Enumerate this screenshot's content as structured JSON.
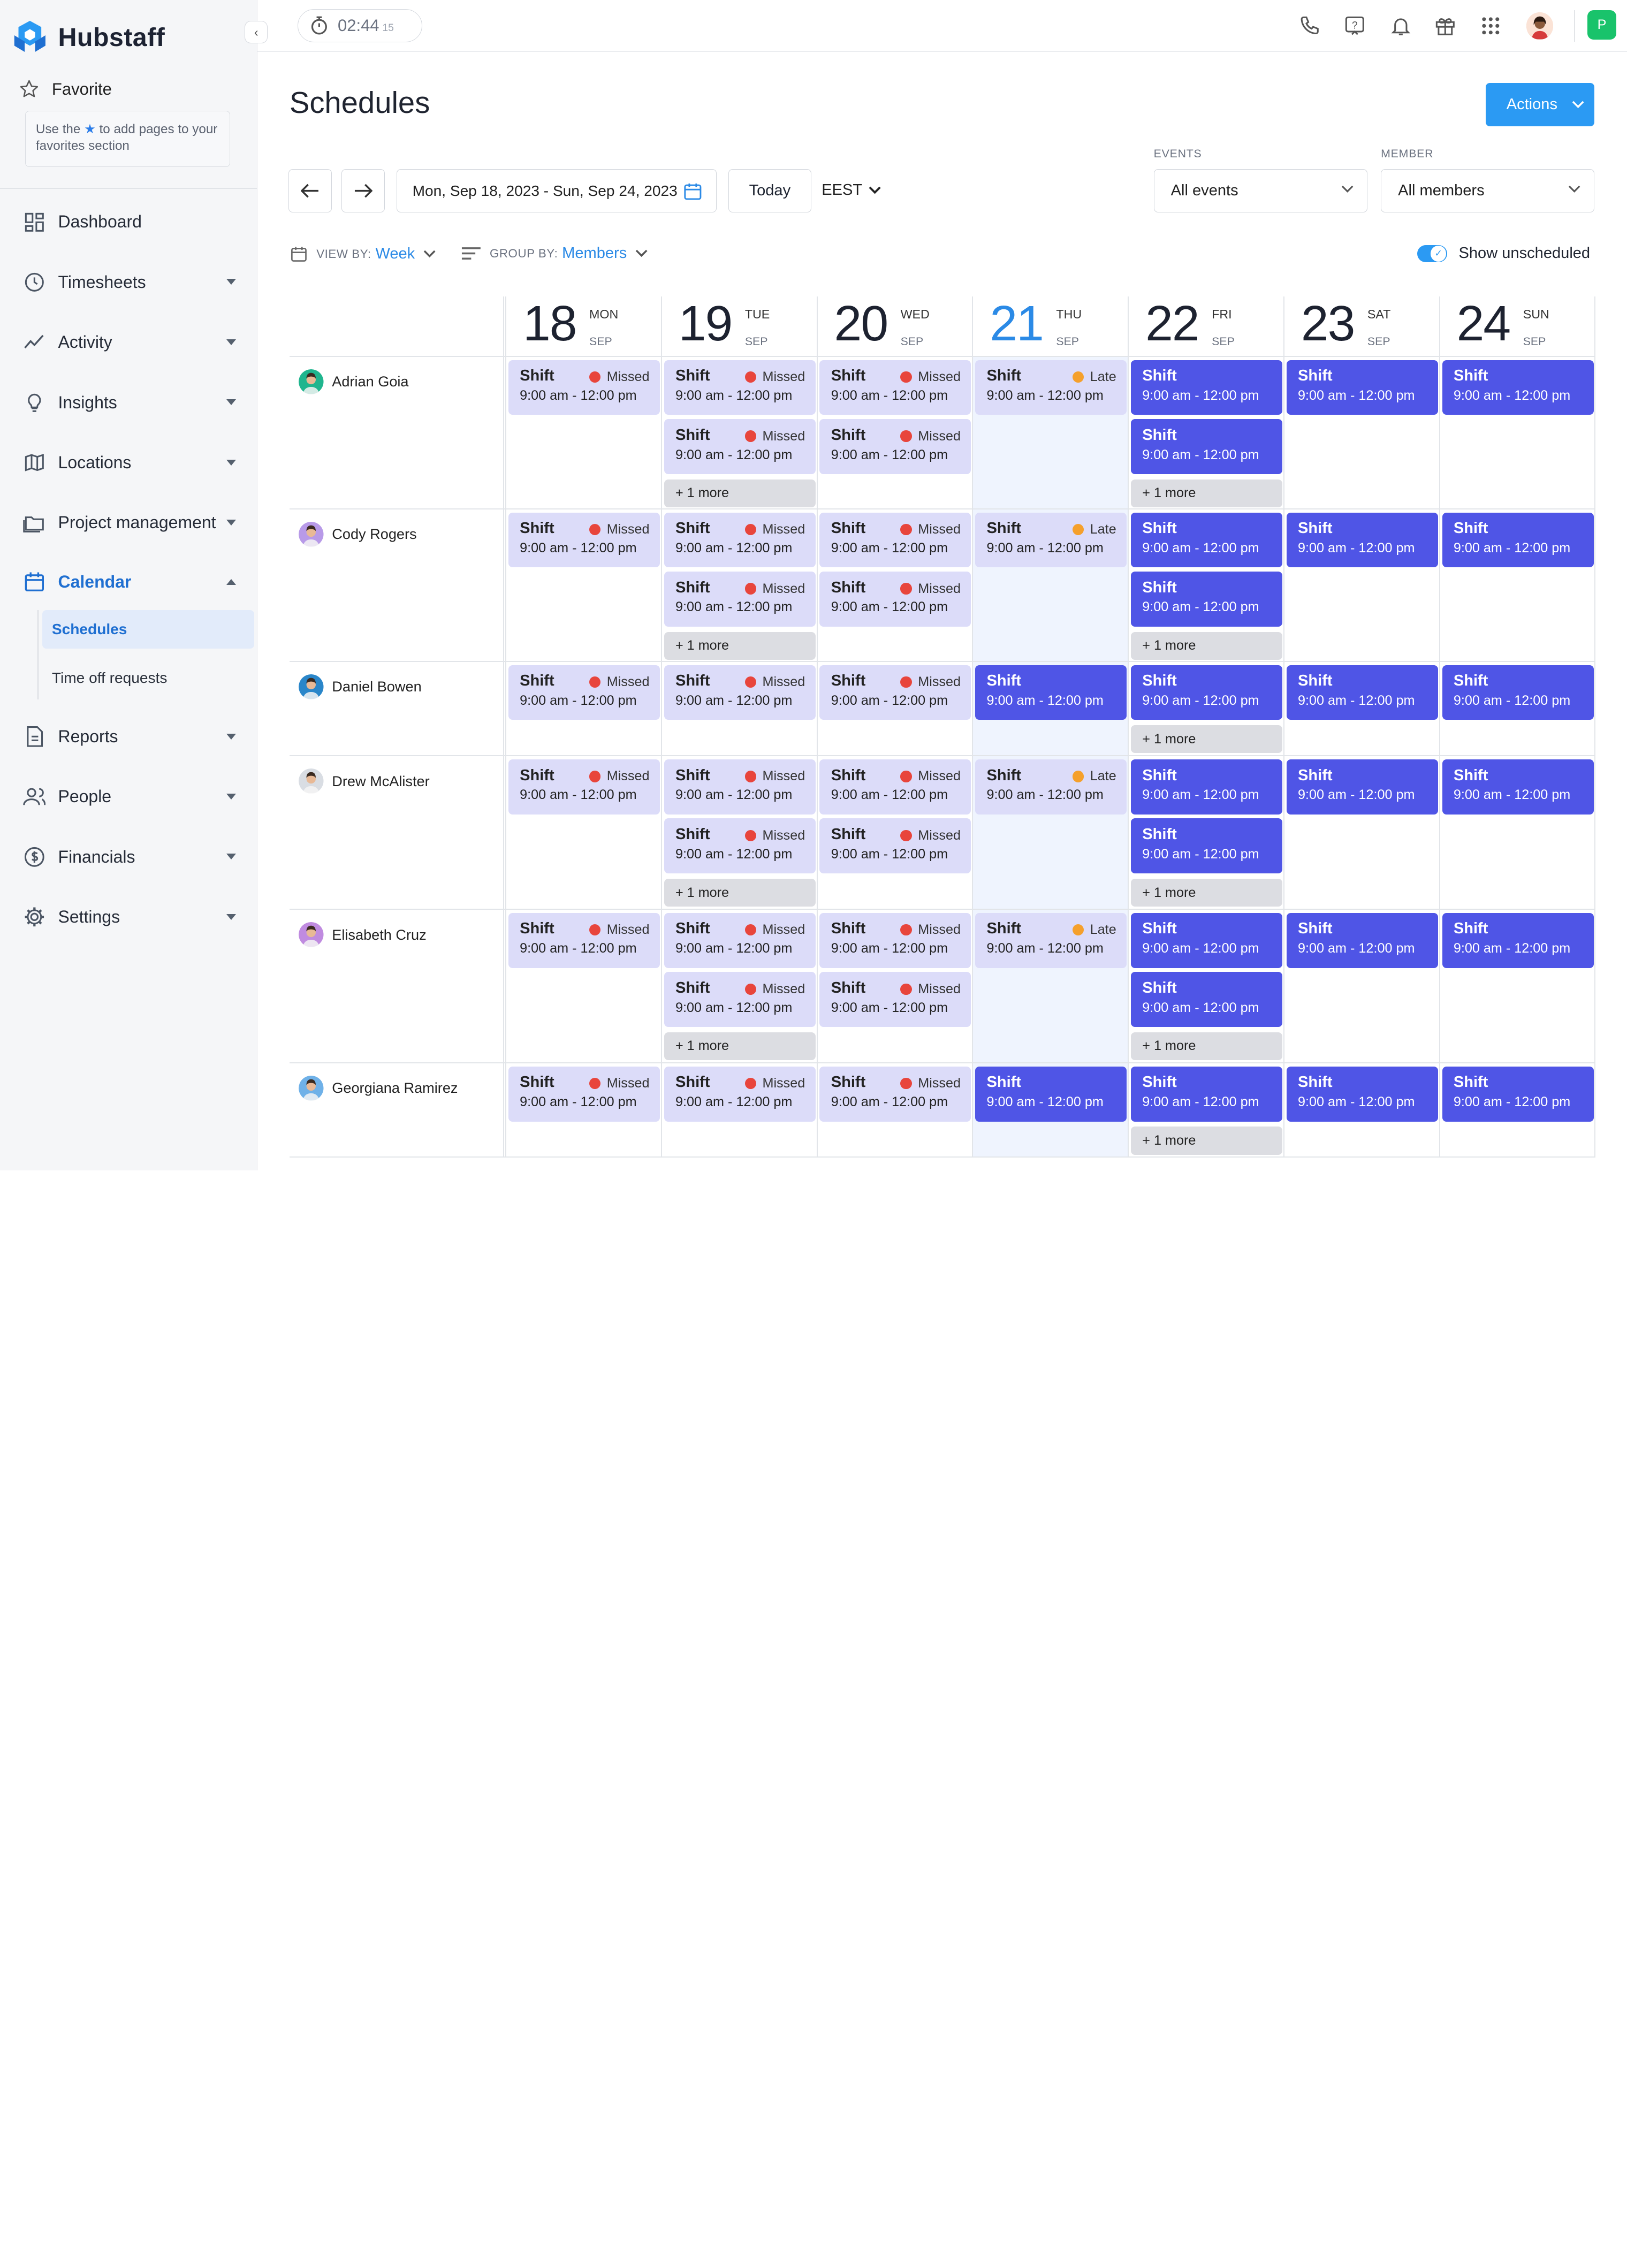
{
  "app": {
    "name": "Hubstaff"
  },
  "sidebar": {
    "favorite": {
      "label": "Favorite",
      "hint_before": "Use the",
      "hint_after": "to add pages to your favorites section"
    },
    "items": [
      {
        "label": "Dashboard",
        "icon": "dashboard-icon",
        "has_caret": false
      },
      {
        "label": "Timesheets",
        "icon": "clock-icon",
        "has_caret": true
      },
      {
        "label": "Activity",
        "icon": "activity-icon",
        "has_caret": true
      },
      {
        "label": "Insights",
        "icon": "lightbulb-icon",
        "has_caret": true
      },
      {
        "label": "Locations",
        "icon": "map-icon",
        "has_caret": true
      },
      {
        "label": "Project management",
        "icon": "folder-icon",
        "has_caret": true
      },
      {
        "label": "Calendar",
        "icon": "calendar-icon",
        "has_caret": true,
        "expanded": true,
        "active": true
      },
      {
        "label": "Reports",
        "icon": "report-icon",
        "has_caret": true
      },
      {
        "label": "People",
        "icon": "people-icon",
        "has_caret": true
      },
      {
        "label": "Financials",
        "icon": "dollar-icon",
        "has_caret": true
      },
      {
        "label": "Settings",
        "icon": "gear-icon",
        "has_caret": true
      }
    ],
    "calendar_sub": [
      {
        "label": "Schedules",
        "active": true
      },
      {
        "label": "Time off requests",
        "active": false
      }
    ]
  },
  "topbar": {
    "timer": {
      "time": "02:44",
      "seconds": "15"
    },
    "icons": [
      "phone-icon",
      "help-icon",
      "bell-icon",
      "gift-icon",
      "apps-grid-icon"
    ],
    "user_initial": "P"
  },
  "page": {
    "title": "Schedules",
    "actions_label": "Actions",
    "date_range": "Mon, Sep 18, 2023 - Sun, Sep 24, 2023",
    "today_label": "Today",
    "timezone": "EEST",
    "filters": {
      "events": {
        "label": "EVENTS",
        "value": "All events"
      },
      "member": {
        "label": "MEMBER",
        "value": "All members"
      }
    },
    "view_by": {
      "label": "VIEW BY:",
      "value": "Week"
    },
    "group_by": {
      "label": "GROUP BY:",
      "value": "Members"
    },
    "show_unscheduled": {
      "label": "Show unscheduled",
      "on": true
    }
  },
  "status_colors": {
    "Missed": "#e8453c",
    "Late": "#f5a02c",
    "published": "#4f55e6",
    "pending": "#dcdcf9"
  },
  "schedule": {
    "days": [
      {
        "num": "18",
        "name": "MON",
        "month": "SEP",
        "today": false
      },
      {
        "num": "19",
        "name": "TUE",
        "month": "SEP",
        "today": false
      },
      {
        "num": "20",
        "name": "WED",
        "month": "SEP",
        "today": false
      },
      {
        "num": "21",
        "name": "THU",
        "month": "SEP",
        "today": true
      },
      {
        "num": "22",
        "name": "FRI",
        "month": "SEP",
        "today": false
      },
      {
        "num": "23",
        "name": "SAT",
        "month": "SEP",
        "today": false
      },
      {
        "num": "24",
        "name": "SUN",
        "month": "SEP",
        "today": false
      }
    ],
    "shift_label": "Shift",
    "shift_time": "9:00 am - 12:00 pm",
    "more_label": "+ 1 more",
    "members": [
      {
        "name": "Adrian Goia",
        "avatar_bg": "#1fb58e",
        "days": [
          {
            "shifts": [
              "Missed"
            ],
            "more": false
          },
          {
            "shifts": [
              "Missed",
              "Missed"
            ],
            "more": true
          },
          {
            "shifts": [
              "Missed",
              "Missed"
            ],
            "more": false
          },
          {
            "shifts": [
              "Late"
            ],
            "more": false
          },
          {
            "shifts": [
              "",
              ""
            ],
            "more": true
          },
          {
            "shifts": [
              ""
            ],
            "more": false
          },
          {
            "shifts": [
              ""
            ],
            "more": false
          }
        ]
      },
      {
        "name": "Cody Rogers",
        "avatar_bg": "#b89ae8",
        "days": [
          {
            "shifts": [
              "Missed"
            ],
            "more": false
          },
          {
            "shifts": [
              "Missed",
              "Missed"
            ],
            "more": true
          },
          {
            "shifts": [
              "Missed",
              "Missed"
            ],
            "more": false
          },
          {
            "shifts": [
              "Late"
            ],
            "more": false
          },
          {
            "shifts": [
              "",
              ""
            ],
            "more": true
          },
          {
            "shifts": [
              ""
            ],
            "more": false
          },
          {
            "shifts": [
              ""
            ],
            "more": false
          }
        ]
      },
      {
        "name": "Daniel Bowen",
        "avatar_bg": "#2a86c9",
        "days": [
          {
            "shifts": [
              "Missed"
            ],
            "more": false
          },
          {
            "shifts": [
              "Missed"
            ],
            "more": false
          },
          {
            "shifts": [
              "Missed"
            ],
            "more": false
          },
          {
            "shifts": [
              ""
            ],
            "more": false
          },
          {
            "shifts": [
              ""
            ],
            "more": true
          },
          {
            "shifts": [
              ""
            ],
            "more": false
          },
          {
            "shifts": [
              ""
            ],
            "more": false
          }
        ]
      },
      {
        "name": "Drew McAlister",
        "avatar_bg": "#d9dde3",
        "days": [
          {
            "shifts": [
              "Missed"
            ],
            "more": false
          },
          {
            "shifts": [
              "Missed",
              "Missed"
            ],
            "more": true
          },
          {
            "shifts": [
              "Missed",
              "Missed"
            ],
            "more": false
          },
          {
            "shifts": [
              "Late"
            ],
            "more": false
          },
          {
            "shifts": [
              "",
              ""
            ],
            "more": true
          },
          {
            "shifts": [
              ""
            ],
            "more": false
          },
          {
            "shifts": [
              ""
            ],
            "more": false
          }
        ]
      },
      {
        "name": "Elisabeth Cruz",
        "avatar_bg": "#c08be0",
        "days": [
          {
            "shifts": [
              "Missed"
            ],
            "more": false
          },
          {
            "shifts": [
              "Missed",
              "Missed"
            ],
            "more": true
          },
          {
            "shifts": [
              "Missed",
              "Missed"
            ],
            "more": false
          },
          {
            "shifts": [
              "Late"
            ],
            "more": false
          },
          {
            "shifts": [
              "",
              ""
            ],
            "more": true
          },
          {
            "shifts": [
              ""
            ],
            "more": false
          },
          {
            "shifts": [
              ""
            ],
            "more": false
          }
        ]
      },
      {
        "name": "Georgiana Ramirez",
        "avatar_bg": "#6fb1e8",
        "days": [
          {
            "shifts": [
              "Missed"
            ],
            "more": false
          },
          {
            "shifts": [
              "Missed"
            ],
            "more": false
          },
          {
            "shifts": [
              "Missed"
            ],
            "more": false
          },
          {
            "shifts": [
              ""
            ],
            "more": false
          },
          {
            "shifts": [
              ""
            ],
            "more": true
          },
          {
            "shifts": [
              ""
            ],
            "more": false
          },
          {
            "shifts": [
              ""
            ],
            "more": false
          }
        ]
      }
    ]
  }
}
